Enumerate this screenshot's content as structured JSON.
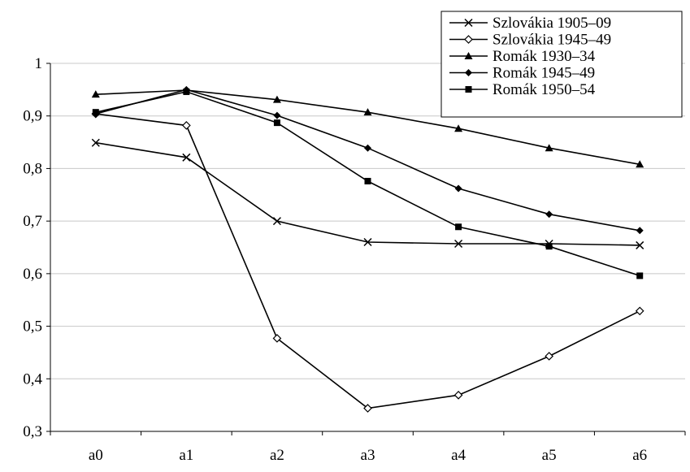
{
  "chart_data": {
    "type": "line",
    "categories": [
      "a0",
      "a1",
      "a2",
      "a3",
      "a4",
      "a5",
      "a6"
    ],
    "ylim": [
      0.3,
      1.0
    ],
    "y_ticks": [
      "0,3",
      "0,4",
      "0,5",
      "0,6",
      "0,7",
      "0,8",
      "0,9",
      "1"
    ],
    "y_tick_values": [
      0.3,
      0.4,
      0.5,
      0.6,
      0.7,
      0.8,
      0.9,
      1.0
    ],
    "grid": true,
    "legend_position": "top-right",
    "series": [
      {
        "name": "Szlovákia 1905–09",
        "marker": "x",
        "values": [
          0.849,
          0.821,
          0.7,
          0.66,
          0.657,
          0.657,
          0.654
        ]
      },
      {
        "name": "Szlovákia 1945–49",
        "marker": "diamond-open",
        "values": [
          0.904,
          0.882,
          0.477,
          0.344,
          0.369,
          0.443,
          0.529
        ]
      },
      {
        "name": "Romák 1930–34",
        "marker": "triangle",
        "values": [
          0.941,
          0.949,
          0.931,
          0.907,
          0.876,
          0.839,
          0.808
        ]
      },
      {
        "name": "Romák 1945–49",
        "marker": "diamond-filled",
        "values": [
          0.904,
          0.95,
          0.901,
          0.839,
          0.762,
          0.713,
          0.682
        ]
      },
      {
        "name": "Romák 1950–54",
        "marker": "square",
        "values": [
          0.907,
          0.946,
          0.887,
          0.776,
          0.689,
          0.652,
          0.596
        ]
      }
    ]
  }
}
